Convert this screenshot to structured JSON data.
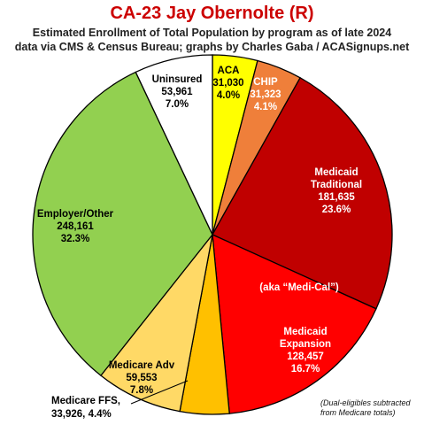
{
  "chart_data": {
    "type": "pie",
    "title": "CA-23 Jay Obernolte (R)",
    "subtitle_lines": [
      "Estimated Enrollment of Total Population by program as of late 2024",
      "data via CMS & Census Bureau; graphs by Charles Gaba / ACASignups.net"
    ],
    "slices": [
      {
        "name": "ACA",
        "value": 31030,
        "value_text": "31,030",
        "percent": "4.0%",
        "color": "#ffff00",
        "label_color": "#000000"
      },
      {
        "name": "CHIP",
        "value": 31323,
        "value_text": "31,323",
        "percent": "4.1%",
        "color": "#ef7f3a",
        "label_color": "#ffffff"
      },
      {
        "name": "Medicaid Traditional",
        "value": 181635,
        "value_text": "181,635",
        "percent": "23.6%",
        "color": "#c00000",
        "label_color": "#ffffff"
      },
      {
        "name": "Medicaid Expansion",
        "value": 128457,
        "value_text": "128,457",
        "percent": "16.7%",
        "color": "#ff0000",
        "label_color": "#ffffff"
      },
      {
        "name": "Medicare FFS",
        "value": 33926,
        "value_text": "33,926",
        "percent": "4.4%",
        "color": "#ffc000",
        "label_color": "#000000"
      },
      {
        "name": "Medicare Adv",
        "value": 59553,
        "value_text": "59,553",
        "percent": "7.8%",
        "color": "#ffd966",
        "label_color": "#000000"
      },
      {
        "name": "Employer/Other",
        "value": 248161,
        "value_text": "248,161",
        "percent": "32.3%",
        "color": "#92d050",
        "label_color": "#000000"
      },
      {
        "name": "Uninsured",
        "value": 53961,
        "value_text": "53,961",
        "percent": "7.0%",
        "color": "#ffffff",
        "label_color": "#000000"
      }
    ],
    "annotations": {
      "medi_cal": "(aka “Medi-Cal”)",
      "medicare_ffs_callout": "Medicare FFS,",
      "medicare_ffs_callout_values": "33,926, 4.4%",
      "footnote_line1": "(Dual-eligibles subtracted",
      "footnote_line2": "from Medicare totals)"
    }
  }
}
